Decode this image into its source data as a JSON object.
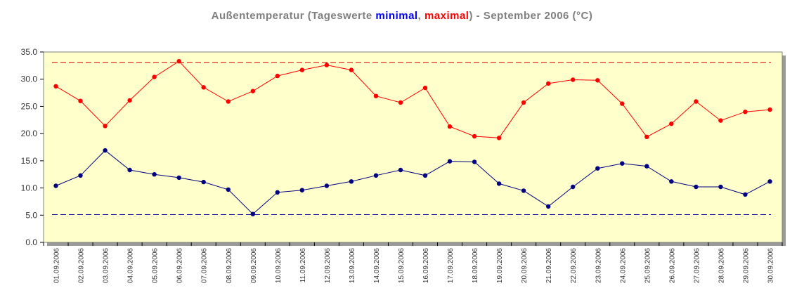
{
  "chart_data": {
    "type": "line",
    "title": {
      "prefix": "Außentemperatur (Tageswerte ",
      "min_word": "minimal",
      "separator": ", ",
      "max_word": "maximal",
      "suffix": ") - September 2006 (°C)"
    },
    "xlabel": "",
    "ylabel": "",
    "ylim": [
      0,
      35
    ],
    "yticks": [
      "0.0",
      "5.0",
      "10.0",
      "15.0",
      "20.0",
      "25.0",
      "30.0",
      "35.0"
    ],
    "x": [
      "01.09.2006",
      "02.09.2006",
      "03.09.2006",
      "04.09.2006",
      "05.09.2006",
      "06.09.2006",
      "07.09.2006",
      "08.09.2006",
      "09.09.2006",
      "10.09.2006",
      "11.09.2006",
      "12.09.2006",
      "13.09.2006",
      "14.09.2006",
      "15.09.2006",
      "16.09.2006",
      "17.09.2006",
      "18.09.2006",
      "19.09.2006",
      "20.09.2006",
      "21.09.2006",
      "22.09.2006",
      "23.09.2006",
      "24.09.2006",
      "25.09.2006",
      "26.09.2006",
      "27.09.2006",
      "28.09.2006",
      "29.09.2006",
      "30.09.2006"
    ],
    "series": [
      {
        "key": "max",
        "color": "#ff0000",
        "values": [
          28.7,
          26.0,
          21.4,
          26.1,
          30.4,
          33.3,
          28.5,
          25.9,
          27.8,
          30.6,
          31.7,
          32.6,
          31.7,
          26.9,
          25.7,
          28.4,
          21.3,
          19.5,
          19.2,
          25.7,
          29.2,
          29.9,
          29.8,
          25.5,
          19.4,
          21.8,
          25.9,
          22.4,
          24.0,
          24.4
        ]
      },
      {
        "key": "min",
        "color": "#000080",
        "values": [
          10.4,
          12.3,
          16.9,
          13.3,
          12.5,
          11.9,
          11.1,
          9.7,
          5.2,
          9.2,
          9.6,
          10.4,
          11.2,
          12.3,
          13.3,
          12.3,
          14.9,
          14.8,
          10.8,
          9.5,
          6.6,
          10.2,
          13.6,
          14.5,
          14.0,
          11.2,
          10.2,
          10.2,
          8.8,
          11.2
        ]
      }
    ],
    "reference_lines": [
      {
        "value": 33.1,
        "color": "#cc0000",
        "style": "dashed"
      },
      {
        "value": 5.1,
        "color": "#000099",
        "style": "dashed"
      }
    ],
    "plot_background": "#ffffcc",
    "grid": false,
    "legend": "none"
  }
}
